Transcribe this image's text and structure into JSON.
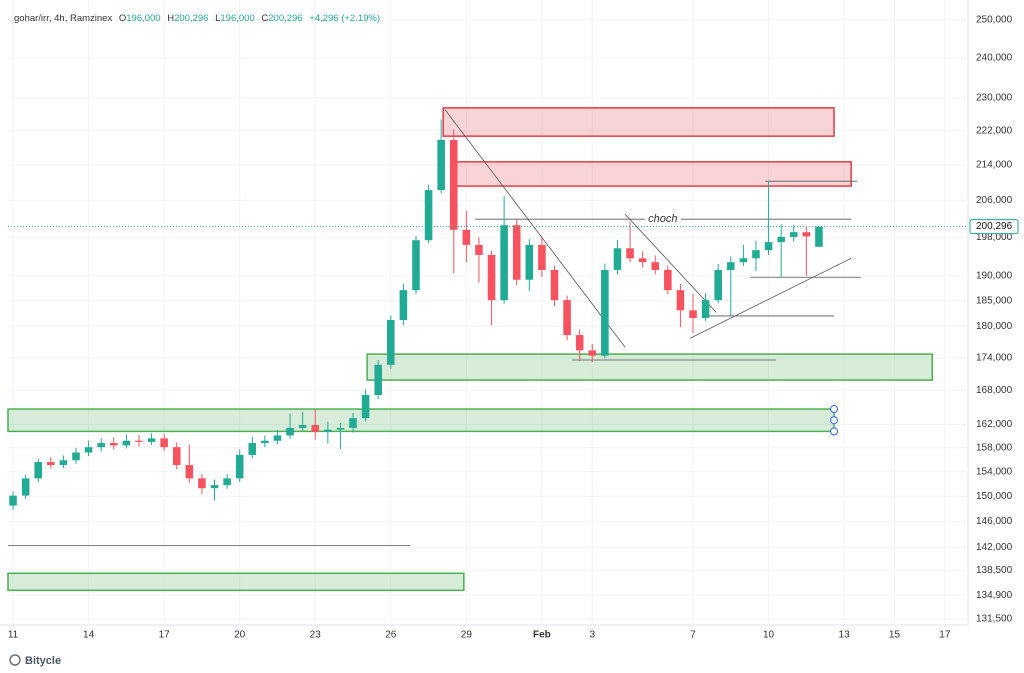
{
  "header": {
    "symbol": "gohar/irr, 4h, Ramzinex",
    "o_key": "O",
    "o": "196,000",
    "h_key": "H",
    "h": "200,296",
    "l_key": "L",
    "l": "196,000",
    "c_key": "C",
    "c": "200,296",
    "change": "+4,296 (+2.19%)"
  },
  "chart_data": {
    "type": "candlestick",
    "x": [
      0,
      0.5,
      1,
      1.5,
      2,
      2.5,
      3,
      3.5,
      4,
      4.5,
      5,
      5.5,
      6,
      6.5,
      7,
      7.5,
      8,
      8.5,
      9,
      9.5,
      10,
      10.5,
      11,
      11.5,
      12,
      12.5,
      13,
      13.5,
      14,
      14.5,
      15,
      15.5,
      16,
      16.5,
      17,
      17.5,
      18,
      18.5,
      19,
      19.5,
      20,
      20.5,
      21,
      21.5,
      22,
      22.5,
      23,
      23.5,
      24,
      24.5,
      25,
      25.5,
      26,
      26.5,
      27,
      27.5,
      28,
      28.5,
      29,
      29.5,
      30,
      30.5,
      31,
      31.5,
      32
    ],
    "ohlc": [
      [
        148500,
        150800,
        147800,
        150100
      ],
      [
        150100,
        153500,
        149600,
        152900
      ],
      [
        152900,
        156200,
        152300,
        155600
      ],
      [
        155600,
        156400,
        154500,
        155100
      ],
      [
        155100,
        156700,
        154600,
        155900
      ],
      [
        155900,
        158000,
        155300,
        157200
      ],
      [
        157200,
        159200,
        156600,
        158100
      ],
      [
        158100,
        159600,
        157400,
        158800
      ],
      [
        158800,
        159800,
        157700,
        158400
      ],
      [
        158400,
        160300,
        157900,
        159200
      ],
      [
        159200,
        160200,
        158200,
        159000
      ],
      [
        159000,
        160500,
        158500,
        159600
      ],
      [
        159600,
        160400,
        157500,
        158100
      ],
      [
        158100,
        158900,
        154400,
        155100
      ],
      [
        155100,
        158500,
        152200,
        152900
      ],
      [
        152900,
        153600,
        150300,
        151300
      ],
      [
        151300,
        152700,
        149300,
        151800
      ],
      [
        151800,
        153600,
        151200,
        152900
      ],
      [
        152900,
        157700,
        152300,
        156800
      ],
      [
        156800,
        159900,
        156200,
        158800
      ],
      [
        158800,
        160100,
        158100,
        159200
      ],
      [
        159200,
        161000,
        158600,
        160100
      ],
      [
        160100,
        163900,
        159500,
        161400
      ],
      [
        161400,
        164200,
        160800,
        161900
      ],
      [
        161900,
        164600,
        159400,
        160700
      ],
      [
        160700,
        162500,
        158700,
        161100
      ],
      [
        161100,
        162300,
        157800,
        161400
      ],
      [
        161400,
        164000,
        160600,
        163100
      ],
      [
        163100,
        168200,
        162500,
        167200
      ],
      [
        167200,
        173600,
        166500,
        172700
      ],
      [
        172700,
        182100,
        172000,
        181200
      ],
      [
        181200,
        188400,
        180200,
        187100
      ],
      [
        187100,
        198300,
        186300,
        197400
      ],
      [
        197400,
        209500,
        196800,
        208300
      ],
      [
        208300,
        224700,
        207600,
        219800
      ],
      [
        219800,
        222300,
        190500,
        199600
      ],
      [
        199600,
        203800,
        192800,
        196400
      ],
      [
        196400,
        198000,
        188600,
        194300
      ],
      [
        194300,
        195200,
        180200,
        185100
      ],
      [
        185100,
        206900,
        184400,
        200600
      ],
      [
        200600,
        201800,
        188100,
        189200
      ],
      [
        189200,
        197600,
        186900,
        196400
      ],
      [
        196400,
        198200,
        189800,
        191200
      ],
      [
        191200,
        192100,
        183900,
        185100
      ],
      [
        185100,
        186000,
        177300,
        178300
      ],
      [
        178300,
        179400,
        173400,
        175400
      ],
      [
        175400,
        176600,
        173200,
        174400
      ],
      [
        174400,
        192500,
        173900,
        191200
      ],
      [
        191200,
        197500,
        190300,
        195700
      ],
      [
        195700,
        201400,
        192800,
        193600
      ],
      [
        193600,
        195000,
        191700,
        192800
      ],
      [
        192800,
        194200,
        190300,
        191200
      ],
      [
        191200,
        192100,
        186300,
        187100
      ],
      [
        187100,
        188400,
        179800,
        183100
      ],
      [
        183100,
        186400,
        178700,
        181600
      ],
      [
        181600,
        186500,
        181000,
        185100
      ],
      [
        185100,
        192400,
        184500,
        191200
      ],
      [
        191200,
        194000,
        182000,
        192800
      ],
      [
        192800,
        196400,
        192000,
        193600
      ],
      [
        193600,
        197300,
        191000,
        195300
      ],
      [
        195300,
        210400,
        194300,
        197000
      ],
      [
        197000,
        200800,
        189600,
        198100
      ],
      [
        198100,
        200700,
        197200,
        199100
      ],
      [
        199100,
        200300,
        190000,
        198200
      ],
      [
        196000,
        200296,
        196000,
        200296
      ]
    ],
    "up_color": "#22ab94",
    "down_color": "#f7525f",
    "xlim": [
      -0.2,
      37.8
    ],
    "ylim": [
      130650,
      255400
    ],
    "log_scale": true,
    "grid": true,
    "xticks": [
      {
        "value": 0,
        "label": "11"
      },
      {
        "value": 3,
        "label": "14"
      },
      {
        "value": 6,
        "label": "17"
      },
      {
        "value": 9,
        "label": "20"
      },
      {
        "value": 12,
        "label": "23"
      },
      {
        "value": 15,
        "label": "26"
      },
      {
        "value": 18,
        "label": "29"
      },
      {
        "value": 21,
        "label": "Feb"
      },
      {
        "value": 23,
        "label": "3"
      },
      {
        "value": 27,
        "label": "7"
      },
      {
        "value": 30,
        "label": "10"
      },
      {
        "value": 33,
        "label": "13"
      },
      {
        "value": 35,
        "label": "15"
      },
      {
        "value": 37,
        "label": "17"
      }
    ],
    "yticks": [
      {
        "value": 250000,
        "label": "250,000"
      },
      {
        "value": 240000,
        "label": "240,000"
      },
      {
        "value": 230000,
        "label": "230,000"
      },
      {
        "value": 222000,
        "label": "222,000"
      },
      {
        "value": 214000,
        "label": "214,000"
      },
      {
        "value": 206000,
        "label": "206,000"
      },
      {
        "value": 198000,
        "label": "198,000"
      },
      {
        "value": 190000,
        "label": "190,000"
      },
      {
        "value": 185000,
        "label": "185,000"
      },
      {
        "value": 180000,
        "label": "180,000"
      },
      {
        "value": 174000,
        "label": "174,000"
      },
      {
        "value": 168000,
        "label": "168,000"
      },
      {
        "value": 162000,
        "label": "162,000"
      },
      {
        "value": 158000,
        "label": "158,000"
      },
      {
        "value": 154000,
        "label": "154,000"
      },
      {
        "value": 150000,
        "label": "150,000"
      },
      {
        "value": 146000,
        "label": "146,000"
      },
      {
        "value": 142000,
        "label": "142,000"
      },
      {
        "value": 138500,
        "label": "138,500"
      },
      {
        "value": 134900,
        "label": "134,900"
      },
      {
        "value": 131500,
        "label": "131,500"
      }
    ],
    "zones": [
      {
        "x": [
          17.08,
          32.6
        ],
        "y": [
          220700,
          227500
        ],
        "color": "#e03c4a"
      },
      {
        "x": [
          17.47,
          33.28
        ],
        "y": [
          209200,
          214700
        ],
        "color": "#e03c4a"
      },
      {
        "x": [
          14.06,
          36.5
        ],
        "y": [
          169900,
          174700
        ],
        "color": "#4caf50"
      },
      {
        "x": [
          -0.2,
          32.6
        ],
        "y": [
          160800,
          164700
        ],
        "color": "#4caf50"
      },
      {
        "x": [
          -0.2,
          17.9
        ],
        "y": [
          135600,
          138100
        ],
        "color": "#4caf50"
      }
    ],
    "lines": [
      {
        "x": [
          17.16,
          24.3
        ],
        "y": [
          227000,
          176000
        ]
      },
      {
        "x": [
          18.35,
          33.28
        ],
        "y": [
          201900,
          201900
        ]
      },
      {
        "x": [
          24.3,
          27.92
        ],
        "y": [
          203000,
          182700
        ]
      },
      {
        "x": [
          26.89,
          33.28
        ],
        "y": [
          177700,
          193600
        ]
      },
      {
        "x": [
          27.48,
          32.6
        ],
        "y": [
          182000,
          182000
        ]
      },
      {
        "x": [
          29.27,
          33.68
        ],
        "y": [
          189700,
          189700
        ]
      },
      {
        "x": [
          29.87,
          33.52
        ],
        "y": [
          210300,
          210300
        ]
      },
      {
        "x": [
          22.2,
          30.3
        ],
        "y": [
          173600,
          173600
        ]
      },
      {
        "x": [
          -0.2,
          15.77
        ],
        "y": [
          142300,
          142300
        ]
      }
    ],
    "annotation": {
      "text": "choch",
      "x": 25.8,
      "y": 201900
    },
    "last_label": "200,296"
  },
  "footer": {
    "brand": "Bitycle"
  }
}
